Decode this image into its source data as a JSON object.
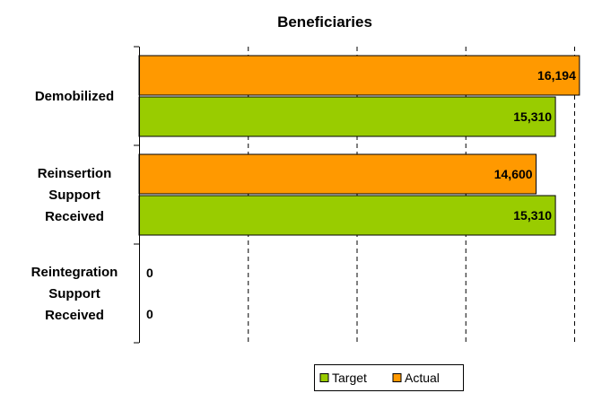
{
  "chart_data": {
    "type": "bar",
    "orientation": "horizontal",
    "title": "Beneficiaries",
    "categories": [
      "Demobilized",
      "Reinsertion Support Received",
      "Reintegration Support Received"
    ],
    "category_lines": [
      [
        "Demobilized"
      ],
      [
        "Reinsertion",
        "Support",
        "Received"
      ],
      [
        "Reintegration",
        "Support",
        "Received"
      ]
    ],
    "series": [
      {
        "name": "Actual",
        "color": "#ff9900",
        "values": [
          16194,
          14600,
          0
        ],
        "labels": [
          "16,194",
          "14,600",
          "0"
        ]
      },
      {
        "name": "Target",
        "color": "#99cc00",
        "values": [
          15310,
          15310,
          0
        ],
        "labels": [
          "15,310",
          "15,310",
          "0"
        ]
      }
    ],
    "legend": {
      "placement": "bottom",
      "items": [
        {
          "name": "Target",
          "color": "#99cc00"
        },
        {
          "name": "Actual",
          "color": "#ff9900"
        }
      ]
    },
    "xlim": [
      0,
      16000
    ],
    "grid": "vertical dashed",
    "xticks_labeled": false
  }
}
